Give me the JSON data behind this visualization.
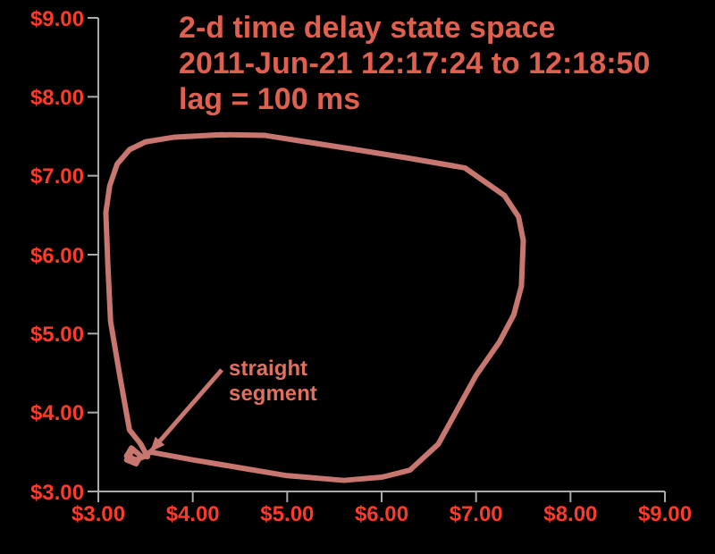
{
  "chart_data": {
    "type": "line",
    "title": "2-d time delay state space",
    "subtitle": "2011-Jun-21 12:17:24 to 12:18:50",
    "annotations": [
      "lag = 100 ms",
      {
        "text": "straight segment",
        "x": 3.55,
        "y": 3.5
      }
    ],
    "series": [
      {
        "color": "#c87670",
        "x": [
          3.35,
          3.3,
          3.4,
          3.45,
          3.35,
          3.3,
          3.4,
          3.5,
          3.55,
          4.0,
          4.5,
          5.0,
          5.6,
          6.0,
          6.3,
          6.6,
          7.0,
          7.25,
          7.4,
          7.48,
          7.5,
          7.45,
          7.3,
          6.88,
          6.3,
          5.73,
          5.2,
          4.77,
          4.3,
          3.81,
          3.5,
          3.33,
          3.2,
          3.12,
          3.08,
          3.1,
          3.13,
          3.23,
          3.33,
          3.45,
          3.52
        ],
        "values": [
          3.5,
          3.4,
          3.35,
          3.45,
          3.55,
          3.45,
          3.4,
          3.45,
          3.5,
          3.4,
          3.3,
          3.2,
          3.14,
          3.18,
          3.27,
          3.6,
          4.47,
          4.9,
          5.24,
          5.6,
          6.18,
          6.48,
          6.75,
          7.1,
          7.22,
          7.33,
          7.43,
          7.51,
          7.52,
          7.49,
          7.43,
          7.33,
          7.15,
          6.87,
          6.53,
          5.9,
          5.15,
          4.45,
          3.78,
          3.6,
          3.44
        ]
      }
    ],
    "xlim": [
      3,
      9
    ],
    "xticks": [
      {
        "value": 3,
        "label": "$3.00"
      },
      {
        "value": 4,
        "label": "$4.00"
      },
      {
        "value": 5,
        "label": "$5.00"
      },
      {
        "value": 6,
        "label": "$6.00"
      },
      {
        "value": 7,
        "label": "$7.00"
      },
      {
        "value": 8,
        "label": "$8.00"
      },
      {
        "value": 9,
        "label": "$9.00"
      }
    ],
    "ylim": [
      3,
      9
    ],
    "yticks": [
      {
        "value": 3,
        "label": "$3.00"
      },
      {
        "value": 4,
        "label": "$4.00"
      },
      {
        "value": 5,
        "label": "$5.00"
      },
      {
        "value": 6,
        "label": "$6.00"
      },
      {
        "value": 7,
        "label": "$7.00"
      },
      {
        "value": 8,
        "label": "$8.00"
      },
      {
        "value": 9,
        "label": "$9.00"
      }
    ],
    "marker": "none",
    "line_style": "solid"
  }
}
